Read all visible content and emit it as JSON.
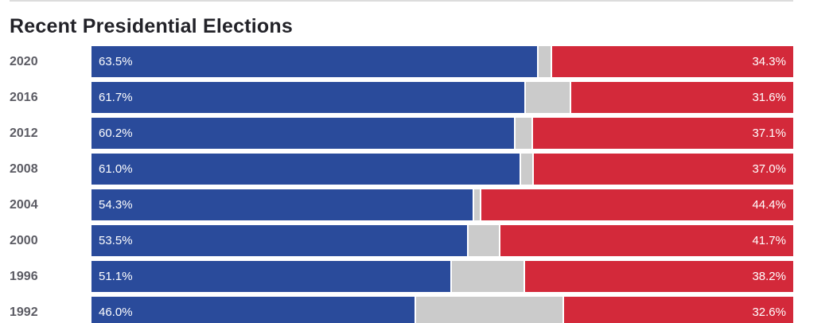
{
  "chart_data": {
    "type": "bar",
    "variant": "horizontal-stacked",
    "title": "Recent Presidential Elections",
    "categories": [
      "2020",
      "2016",
      "2012",
      "2008",
      "2004",
      "2000",
      "1996",
      "1992"
    ],
    "series": [
      {
        "name": "blue",
        "color": "#2a4b9b",
        "values": [
          63.5,
          61.7,
          60.2,
          61.0,
          54.3,
          53.5,
          51.1,
          46.0
        ],
        "labels": [
          "63.5%",
          "61.7%",
          "60.2%",
          "61.0%",
          "54.3%",
          "53.5%",
          "51.1%",
          "46.0%"
        ]
      },
      {
        "name": "gray-remainder",
        "color": "#cbcbcb",
        "values": [
          2.2,
          6.7,
          2.7,
          2.0,
          1.3,
          4.8,
          10.7,
          21.4
        ],
        "labels": [
          "",
          "",
          "",
          "",
          "",
          "",
          "",
          ""
        ]
      },
      {
        "name": "red",
        "color": "#d3293a",
        "values": [
          34.3,
          31.6,
          37.1,
          37.0,
          44.4,
          41.7,
          38.2,
          32.6
        ],
        "labels": [
          "34.3%",
          "31.6%",
          "37.1%",
          "37.0%",
          "44.4%",
          "41.7%",
          "38.2%",
          "32.6%"
        ]
      }
    ],
    "xlim": [
      0,
      100
    ],
    "value_suffix": "%",
    "legend": "none",
    "grid": "off"
  },
  "colors": {
    "blue_segment": "#2a4b9b",
    "gray_segment": "#cbcbcb",
    "red_segment": "#d3293a",
    "title_text": "#222228",
    "year_label_text": "#5b5b63",
    "bar_value_text": "#ffffff",
    "top_border": "#dcdcdc"
  }
}
